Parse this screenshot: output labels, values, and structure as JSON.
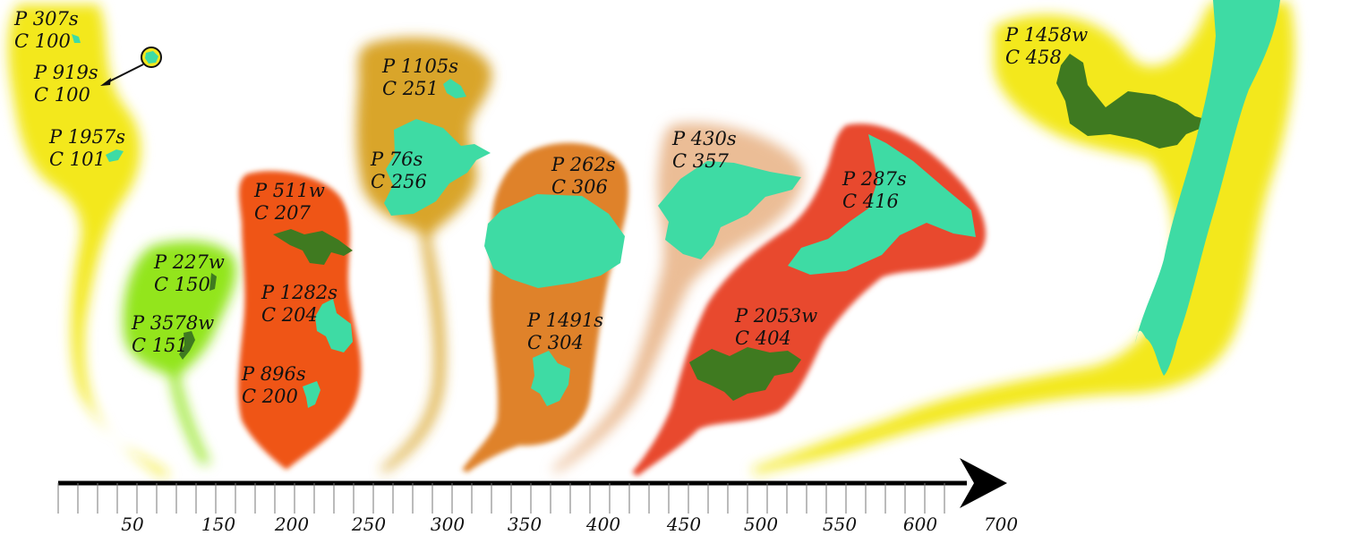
{
  "colors": {
    "yellow": "#f3e81e",
    "lime": "#93e51a",
    "orange_red": "#ef5418",
    "gold": "#d9a52a",
    "orange": "#df8229",
    "peach": "#ebbd96",
    "red": "#e8492f",
    "turquoise": "#3edba4",
    "dark_green": "#3f7a20",
    "axis": "#000000"
  },
  "axis": {
    "tick_labels": [
      "50",
      "150",
      "200",
      "250",
      "300",
      "350",
      "400",
      "450",
      "500",
      "550",
      "600",
      "700"
    ]
  },
  "groups": [
    {
      "id": "g1",
      "color": "yellow",
      "labels": [
        {
          "p": "P 307s",
          "c": "C 100",
          "patch": "turquoise"
        },
        {
          "p": "P 919s",
          "c": "C 100",
          "patch": "turquoise"
        },
        {
          "p": "P 1957s",
          "c": "C 101",
          "patch": "turquoise"
        }
      ]
    },
    {
      "id": "g2",
      "color": "lime",
      "labels": [
        {
          "p": "P 227w",
          "c": "C 150",
          "patch": "dark_green"
        },
        {
          "p": "P 3578w",
          "c": "C 151",
          "patch": "dark_green"
        }
      ]
    },
    {
      "id": "g3",
      "color": "orange_red",
      "labels": [
        {
          "p": "P 511w",
          "c": "C 207",
          "patch": "dark_green"
        },
        {
          "p": "P 1282s",
          "c": "C 204",
          "patch": "turquoise"
        },
        {
          "p": "P 896s",
          "c": "C 200",
          "patch": "turquoise"
        }
      ]
    },
    {
      "id": "g4",
      "color": "gold",
      "labels": [
        {
          "p": "P 1105s",
          "c": "C 251",
          "patch": "turquoise"
        },
        {
          "p": "P 76s",
          "c": "C 256",
          "patch": "turquoise"
        }
      ]
    },
    {
      "id": "g5",
      "color": "orange",
      "labels": [
        {
          "p": "P 262s",
          "c": "C 306",
          "patch": "turquoise"
        },
        {
          "p": "P 1491s",
          "c": "C 304",
          "patch": "turquoise"
        }
      ]
    },
    {
      "id": "g6",
      "color": "peach",
      "labels": [
        {
          "p": "P 430s",
          "c": "C 357",
          "patch": "turquoise"
        }
      ]
    },
    {
      "id": "g7",
      "color": "red",
      "labels": [
        {
          "p": "P 287s",
          "c": "C 416",
          "patch": "turquoise"
        },
        {
          "p": "P 2053w",
          "c": "C 404",
          "patch": "dark_green"
        }
      ]
    },
    {
      "id": "g8",
      "color": "yellow",
      "labels": [
        {
          "p": "P 1458w",
          "c": "C 458",
          "patch": "dark_green"
        }
      ]
    }
  ]
}
